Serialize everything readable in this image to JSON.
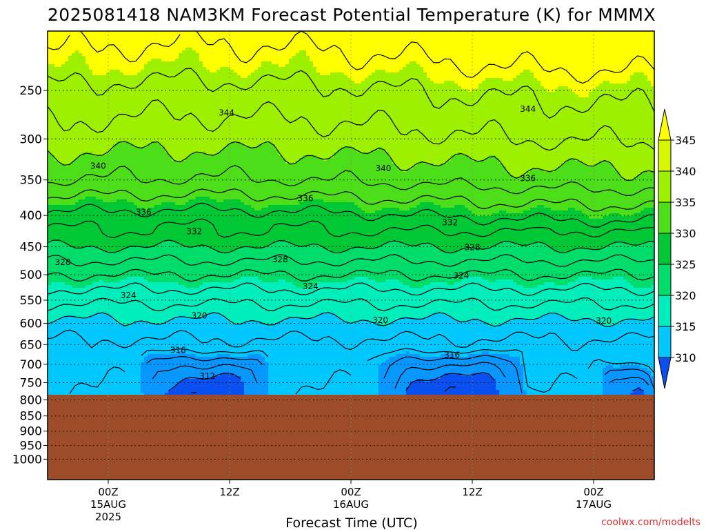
{
  "chart_data": {
    "type": "heatmap",
    "title": "2025081418 NAM3KM Forecast Potential Temperature (K) for MMMX",
    "xlabel": "Forecast Time (UTC)",
    "ylabel": "",
    "credit": "coolwx.com/modelts",
    "yscale": "log-pressure",
    "ylim": [
      1080,
      200
    ],
    "y_ticks": [
      250,
      300,
      350,
      400,
      450,
      500,
      550,
      600,
      650,
      700,
      750,
      800,
      850,
      900,
      950,
      1000
    ],
    "xlim_hours": [
      -6,
      54
    ],
    "x_ticks": [
      {
        "hour": 0,
        "line1": "00Z",
        "line2": "15AUG",
        "line3": "2025"
      },
      {
        "hour": 12,
        "line1": "12Z",
        "line2": "",
        "line3": ""
      },
      {
        "hour": 24,
        "line1": "00Z",
        "line2": "16AUG",
        "line3": ""
      },
      {
        "hour": 36,
        "line1": "12Z",
        "line2": "",
        "line3": ""
      },
      {
        "hour": 48,
        "line1": "00Z",
        "line2": "17AUG",
        "line3": ""
      }
    ],
    "surface_pressure_hPa": 785,
    "surface_color": "#9c4c28",
    "colorbar": {
      "levels": [
        310,
        315,
        320,
        325,
        330,
        335,
        340,
        345
      ],
      "colors": [
        "#0a50f0",
        "#0896ff",
        "#00c8ff",
        "#00eebb",
        "#00dc6a",
        "#00c835",
        "#4cde18",
        "#9cf000",
        "#d6f700",
        "#ffff00"
      ],
      "tick_labels": [
        "310",
        "315",
        "320",
        "325",
        "330",
        "335",
        "340",
        "345"
      ]
    },
    "contour_interval_K": 2,
    "contour_labels": [
      {
        "text": "344",
        "hour": 11.7,
        "p": 272
      },
      {
        "text": "344",
        "hour": 41.5,
        "p": 268
      },
      {
        "text": "340",
        "hour": -1.0,
        "p": 332
      },
      {
        "text": "340",
        "hour": 27.2,
        "p": 335
      },
      {
        "text": "336",
        "hour": 3.5,
        "p": 395
      },
      {
        "text": "336",
        "hour": 19.5,
        "p": 375
      },
      {
        "text": "336",
        "hour": 41.5,
        "p": 348
      },
      {
        "text": "332",
        "hour": 8.5,
        "p": 425
      },
      {
        "text": "332",
        "hour": 33.8,
        "p": 411
      },
      {
        "text": "328",
        "hour": -4.5,
        "p": 477
      },
      {
        "text": "328",
        "hour": 17.0,
        "p": 472
      },
      {
        "text": "328",
        "hour": 36.0,
        "p": 451
      },
      {
        "text": "324",
        "hour": 2.0,
        "p": 540
      },
      {
        "text": "324",
        "hour": 20.0,
        "p": 522
      },
      {
        "text": "324",
        "hour": 34.9,
        "p": 502
      },
      {
        "text": "320",
        "hour": 9.0,
        "p": 583
      },
      {
        "text": "320",
        "hour": 26.9,
        "p": 593
      },
      {
        "text": "320",
        "hour": 49.0,
        "p": 595
      },
      {
        "text": "316",
        "hour": 6.9,
        "p": 664
      },
      {
        "text": "316",
        "hour": 34.0,
        "p": 676
      },
      {
        "text": "312",
        "hour": 9.8,
        "p": 732
      }
    ],
    "field_description": {
      "mid_level_profile": [
        {
          "p": 230,
          "theta": 345.5
        },
        {
          "p": 250,
          "theta": 344.0
        },
        {
          "p": 300,
          "theta": 341.5
        },
        {
          "p": 350,
          "theta": 338.5
        },
        {
          "p": 400,
          "theta": 334.0
        },
        {
          "p": 450,
          "theta": 330.0
        },
        {
          "p": 500,
          "theta": 326.0
        },
        {
          "p": 550,
          "theta": 322.5
        },
        {
          "p": 600,
          "theta": 319.5
        },
        {
          "p": 650,
          "theta": 317.5
        },
        {
          "p": 700,
          "theta": 316.5
        },
        {
          "p": 785,
          "theta": 316.0
        }
      ],
      "diurnal_cold_pools": [
        {
          "center_hour": 9.5,
          "half_width_hours": 6.5,
          "depth_hPa": 130,
          "min_theta": 308.5
        },
        {
          "center_hour": 34.0,
          "half_width_hours": 7.5,
          "depth_hPa": 130,
          "min_theta": 308.5
        },
        {
          "center_hour": 51.5,
          "half_width_hours": 2.8,
          "depth_hPa": 90,
          "min_theta": 309.5
        }
      ]
    }
  }
}
